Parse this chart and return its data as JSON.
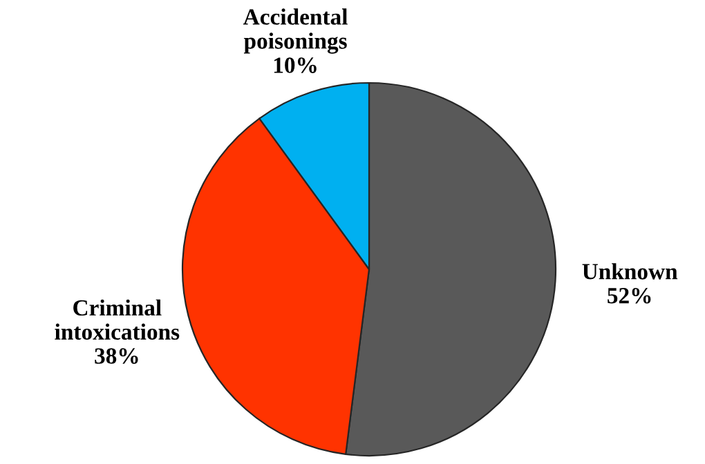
{
  "chart_data": {
    "type": "pie",
    "categories": [
      "Unknown",
      "Criminal\nintoxications",
      "Accidental\npoisonings"
    ],
    "values": [
      52,
      38,
      10
    ],
    "value_labels": [
      "52%",
      "38%",
      "10%"
    ],
    "colors": [
      "#595959",
      "#ff3300",
      "#00b0f0"
    ]
  }
}
